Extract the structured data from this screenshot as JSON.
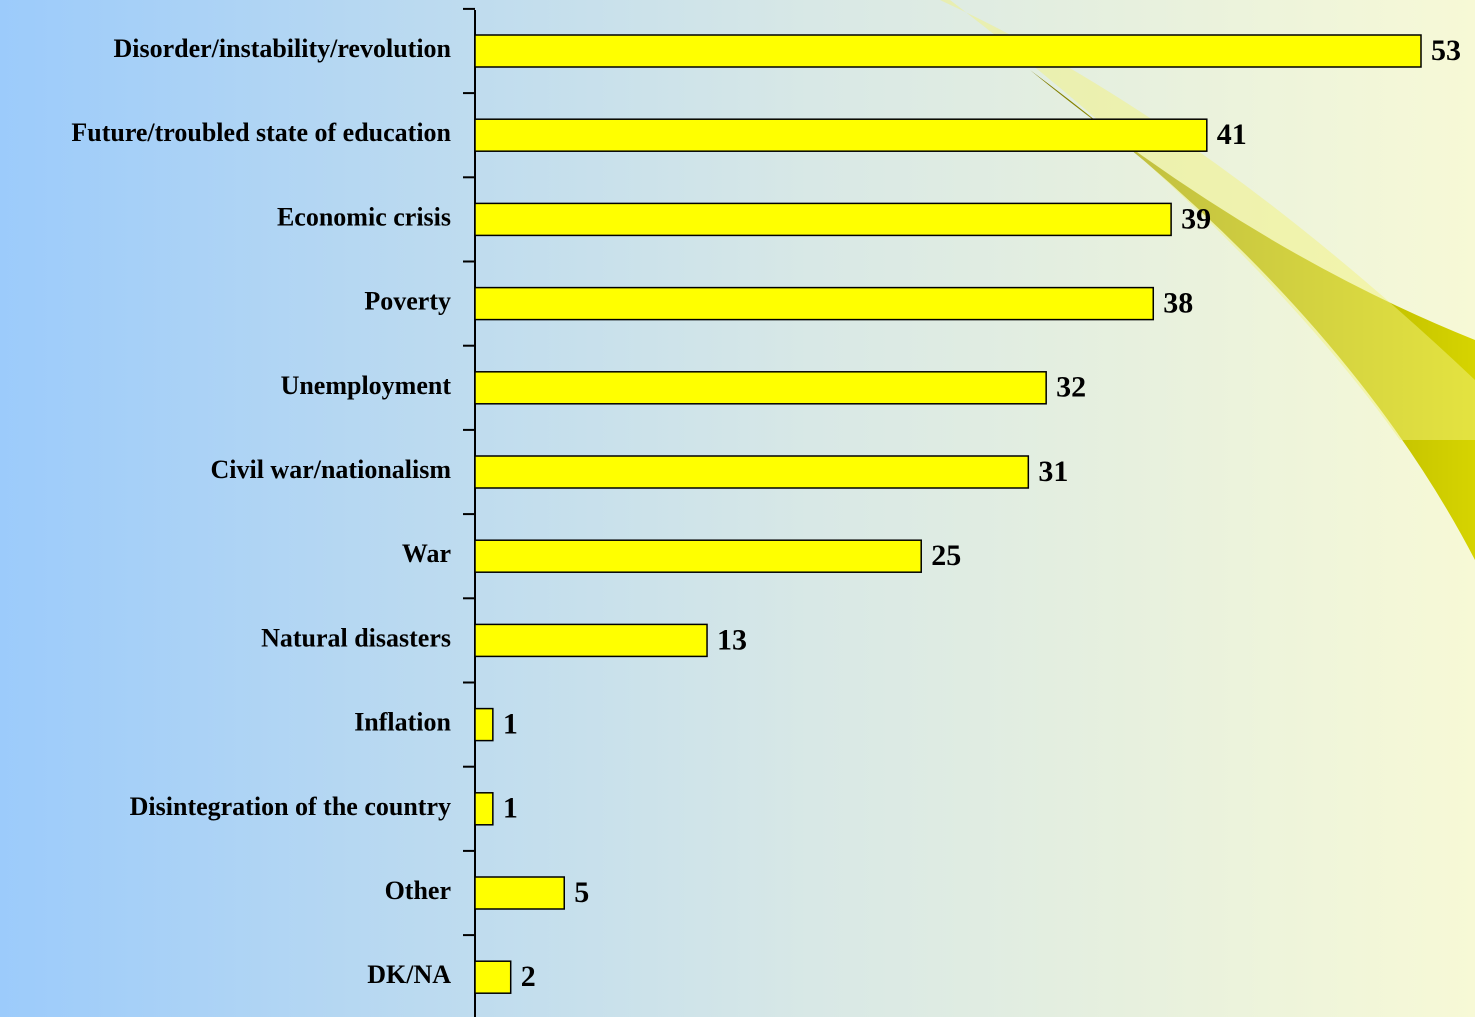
{
  "chart_data": {
    "type": "bar",
    "orientation": "horizontal",
    "categories": [
      "Disorder/instability/revolution",
      "Future/troubled state of education",
      "Economic crisis",
      "Poverty",
      "Unemployment",
      "Civil war/nationalism",
      "War",
      "Natural disasters",
      "Inflation",
      "Disintegration of the country",
      "Other",
      "DK/NA"
    ],
    "values": [
      53,
      41,
      39,
      38,
      32,
      31,
      25,
      13,
      1,
      1,
      5,
      2
    ],
    "color": "#ffff00",
    "xlim": [
      0,
      53
    ]
  }
}
